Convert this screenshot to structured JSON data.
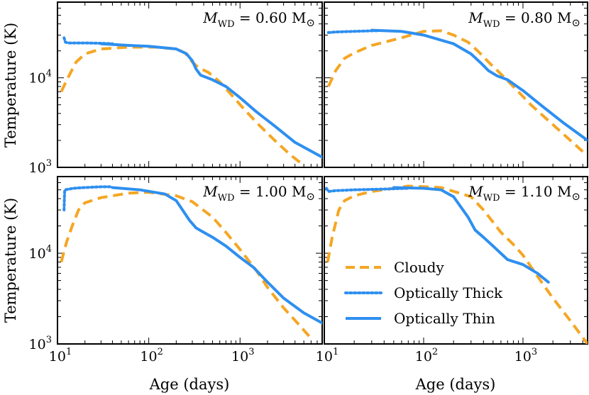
{
  "chart_data": {
    "type": "line",
    "xlabel": "Age (days)",
    "ylabel": "Temperature (K)",
    "xscale": "log",
    "yscale": "log",
    "ylim": [
      1000,
      70000
    ],
    "x_tick_labels": [
      "10",
      "10",
      "10"
    ],
    "x_tick_exponents": [
      "1",
      "2",
      "3"
    ],
    "y_tick_labels": [
      "10",
      "10"
    ],
    "y_tick_exponents": [
      "3",
      "4"
    ],
    "legend": {
      "placement": "bottom-right panel, lower-left",
      "entries": [
        {
          "label": "Cloudy",
          "style": "dashed",
          "color": "#F5A623"
        },
        {
          "label": "Optically Thick",
          "style": "dotted",
          "color": "#2E8FF0"
        },
        {
          "label": "Optically Thin",
          "style": "solid",
          "color": "#2E8FF0"
        }
      ]
    },
    "colors": {
      "cloudy": "#F5A623",
      "thick": "#2E8FF0",
      "thin": "#2E8FF0"
    },
    "panels": [
      {
        "title": "M",
        "title_sub": "WD",
        "title_value": " = 0.60 M",
        "title_sun": "⊙",
        "xlim": [
          10,
          7940
        ],
        "series": {
          "cloudy": [
            [
              11,
              7000
            ],
            [
              13,
              10000
            ],
            [
              16,
              15000
            ],
            [
              20,
              18500
            ],
            [
              30,
              21000
            ],
            [
              60,
              22000
            ],
            [
              120,
              22000
            ],
            [
              200,
              21000
            ],
            [
              250,
              19000
            ],
            [
              300,
              15000
            ],
            [
              350,
              13000
            ],
            [
              450,
              11500
            ],
            [
              600,
              9000
            ],
            [
              800,
              6500
            ],
            [
              1100,
              4500
            ],
            [
              1600,
              3000
            ],
            [
              2400,
              2000
            ],
            [
              3500,
              1400
            ],
            [
              5000,
              1050
            ]
          ],
          "thick": [
            [
              11.8,
              28000
            ],
            [
              12,
              26500
            ],
            [
              12.2,
              25000
            ],
            [
              13,
              24500
            ],
            [
              20,
              24500
            ],
            [
              30,
              24300
            ],
            [
              40,
              24000
            ]
          ],
          "thin": [
            [
              30,
              24000
            ],
            [
              60,
              23000
            ],
            [
              100,
              22500
            ],
            [
              200,
              21000
            ],
            [
              260,
              18500
            ],
            [
              300,
              15500
            ],
            [
              330,
              12500
            ],
            [
              370,
              10700
            ],
            [
              500,
              9500
            ],
            [
              700,
              8000
            ],
            [
              1000,
              6000
            ],
            [
              1500,
              4200
            ],
            [
              2500,
              2800
            ],
            [
              4000,
              1900
            ],
            [
              7940,
              1300
            ]
          ]
        }
      },
      {
        "title": "M",
        "title_sub": "WD",
        "title_value": " = 0.80 M",
        "title_sun": "⊙",
        "xlim": [
          10,
          4470
        ],
        "series": {
          "cloudy": [
            [
              11,
              8000
            ],
            [
              13,
              12000
            ],
            [
              16,
              16500
            ],
            [
              20,
              19000
            ],
            [
              30,
              23000
            ],
            [
              60,
              28000
            ],
            [
              100,
              33000
            ],
            [
              150,
              33500
            ],
            [
              200,
              30000
            ],
            [
              280,
              25000
            ],
            [
              350,
              20000
            ],
            [
              450,
              15000
            ],
            [
              600,
              11000
            ],
            [
              800,
              8000
            ],
            [
              1200,
              5000
            ],
            [
              2000,
              3000
            ],
            [
              3000,
              2000
            ],
            [
              4000,
              1500
            ]
          ],
          "thick": [
            [
              11,
              32000
            ],
            [
              13,
              32500
            ],
            [
              20,
              33000
            ],
            [
              30,
              33500
            ],
            [
              35,
              33500
            ]
          ],
          "thin": [
            [
              30,
              34000
            ],
            [
              60,
              33000
            ],
            [
              100,
              30000
            ],
            [
              200,
              24000
            ],
            [
              300,
              18500
            ],
            [
              380,
              14500
            ],
            [
              450,
              12000
            ],
            [
              550,
              10500
            ],
            [
              700,
              9500
            ],
            [
              1000,
              7200
            ],
            [
              1500,
              5000
            ],
            [
              2500,
              3200
            ],
            [
              4470,
              2000
            ]
          ]
        }
      },
      {
        "title": "M",
        "title_sub": "WD",
        "title_value": " = 1.00 M",
        "title_sun": "⊙",
        "xlim": [
          10,
          7940
        ],
        "series": {
          "cloudy": [
            [
              11,
              8000
            ],
            [
              12.5,
              13000
            ],
            [
              14.5,
              20000
            ],
            [
              17,
              30000
            ],
            [
              20,
              36000
            ],
            [
              30,
              41000
            ],
            [
              60,
              46000
            ],
            [
              100,
              47000
            ],
            [
              200,
              43000
            ],
            [
              300,
              37000
            ],
            [
              500,
              25000
            ],
            [
              700,
              17000
            ],
            [
              1000,
              11000
            ],
            [
              1500,
              6500
            ],
            [
              2000,
              4200
            ],
            [
              3000,
              2500
            ],
            [
              4500,
              1600
            ],
            [
              6000,
              1150
            ]
          ],
          "thick": [
            [
              11.8,
              30000
            ],
            [
              11.9,
              40000
            ],
            [
              12,
              50000
            ],
            [
              15,
              52000
            ],
            [
              20,
              53000
            ],
            [
              30,
              54000
            ],
            [
              40,
              54000
            ]
          ],
          "thin": [
            [
              40,
              53000
            ],
            [
              80,
              50000
            ],
            [
              150,
              45000
            ],
            [
              200,
              38000
            ],
            [
              280,
              23000
            ],
            [
              330,
              19000
            ],
            [
              400,
              17000
            ],
            [
              500,
              15000
            ],
            [
              700,
              12000
            ],
            [
              1000,
              9000
            ],
            [
              1400,
              7000
            ],
            [
              2000,
              4800
            ],
            [
              3000,
              3200
            ],
            [
              5000,
              2200
            ],
            [
              7940,
              1700
            ]
          ]
        }
      },
      {
        "title": "M",
        "title_sub": "WD",
        "title_value": " = 1.10 M",
        "title_sun": "⊙",
        "xlim": [
          10,
          4470
        ],
        "series": {
          "cloudy": [
            [
              10.8,
              8000
            ],
            [
              12,
              15000
            ],
            [
              14,
              30000
            ],
            [
              16,
              38000
            ],
            [
              20,
              43000
            ],
            [
              30,
              48000
            ],
            [
              50,
              52000
            ],
            [
              70,
              55000
            ],
            [
              150,
              53000
            ],
            [
              300,
              42000
            ],
            [
              400,
              30000
            ],
            [
              500,
              22000
            ],
            [
              600,
              17000
            ],
            [
              800,
              12500
            ],
            [
              1000,
              9500
            ],
            [
              1500,
              5000
            ],
            [
              2000,
              3200
            ],
            [
              3000,
              1800
            ],
            [
              4470,
              1000
            ]
          ],
          "thick": [
            [
              10.5,
              52000
            ],
            [
              11,
              48000
            ],
            [
              13,
              49000
            ],
            [
              20,
              50000
            ],
            [
              40,
              51000
            ],
            [
              70,
              52000
            ]
          ],
          "thin": [
            [
              50,
              53000
            ],
            [
              100,
              52000
            ],
            [
              150,
              50000
            ],
            [
              200,
              42000
            ],
            [
              280,
              25000
            ],
            [
              330,
              18000
            ],
            [
              400,
              15000
            ],
            [
              500,
              12000
            ],
            [
              700,
              8500
            ],
            [
              1000,
              7500
            ],
            [
              1400,
              6000
            ],
            [
              1800,
              4800
            ]
          ]
        }
      }
    ]
  }
}
